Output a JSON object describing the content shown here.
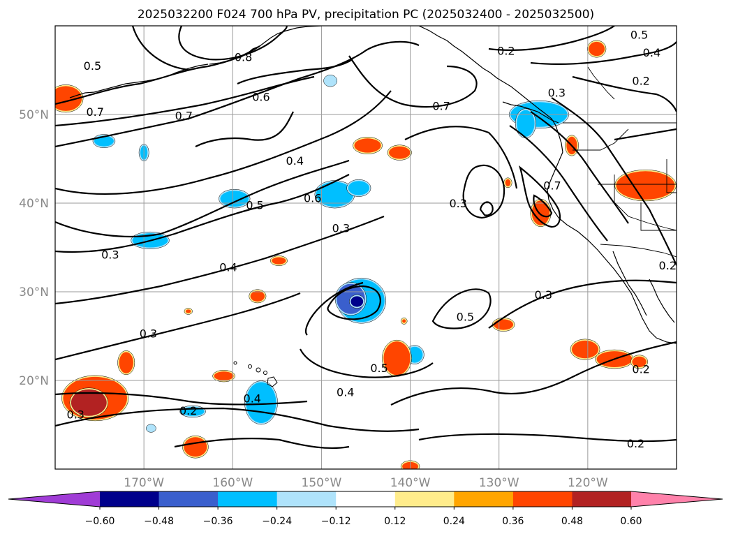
{
  "title": "2025032200 F024 700 hPa PV, precipitation PC (2025032400 - 2025032500)",
  "chart_data": {
    "type": "contour_map",
    "lon_range": [
      -180,
      -110
    ],
    "lat_range": [
      10,
      60
    ],
    "lat_ticks": [
      {
        "value": 50,
        "label": "50°N"
      },
      {
        "value": 40,
        "label": "40°N"
      },
      {
        "value": 30,
        "label": "30°N"
      },
      {
        "value": 20,
        "label": "20°N"
      }
    ],
    "lon_ticks": [
      {
        "value": -170,
        "label": "170°W"
      },
      {
        "value": -160,
        "label": "160°W"
      },
      {
        "value": -150,
        "label": "150°W"
      },
      {
        "value": -140,
        "label": "140°W"
      },
      {
        "value": -130,
        "label": "130°W"
      },
      {
        "value": -120,
        "label": "120°W"
      }
    ],
    "grid": true,
    "contour_field": "700 hPa PV",
    "contour_color": "#000000",
    "contour_labels": [
      {
        "text": "0.5",
        "lon": -175.8,
        "lat": 55.5
      },
      {
        "text": "0.7",
        "lon": -175.5,
        "lat": 50.3
      },
      {
        "text": "0.7",
        "lon": -165.5,
        "lat": 49.9
      },
      {
        "text": "0.6",
        "lon": -156.8,
        "lat": 52.0
      },
      {
        "text": "0.8",
        "lon": -158.8,
        "lat": 56.5
      },
      {
        "text": "0.4",
        "lon": -153.0,
        "lat": 44.8
      },
      {
        "text": "0.5",
        "lon": -157.5,
        "lat": 39.8
      },
      {
        "text": "0.6",
        "lon": -151.0,
        "lat": 40.6
      },
      {
        "text": "0.3",
        "lon": -147.8,
        "lat": 37.2
      },
      {
        "text": "0.3",
        "lon": -173.8,
        "lat": 34.2
      },
      {
        "text": "0.4",
        "lon": -160.5,
        "lat": 32.8
      },
      {
        "text": "0.3",
        "lon": -169.5,
        "lat": 25.3
      },
      {
        "text": "0.3",
        "lon": -177.7,
        "lat": 16.2
      },
      {
        "text": "0.2",
        "lon": -165.0,
        "lat": 16.6
      },
      {
        "text": "0.4",
        "lon": -157.8,
        "lat": 18.0
      },
      {
        "text": "0.4",
        "lon": -147.3,
        "lat": 18.7
      },
      {
        "text": "0.5",
        "lon": -143.5,
        "lat": 21.4
      },
      {
        "text": "0.5",
        "lon": -133.8,
        "lat": 27.2
      },
      {
        "text": "0.3",
        "lon": -125.0,
        "lat": 29.7
      },
      {
        "text": "0.7",
        "lon": -136.5,
        "lat": 51.0
      },
      {
        "text": "0.3",
        "lon": -134.6,
        "lat": 40.0
      },
      {
        "text": "0.7",
        "lon": -124.0,
        "lat": 42.0
      },
      {
        "text": "0.2",
        "lon": -129.2,
        "lat": 57.2
      },
      {
        "text": "0.3",
        "lon": -123.5,
        "lat": 52.5
      },
      {
        "text": "0.5",
        "lon": -114.2,
        "lat": 59.0
      },
      {
        "text": "0.4",
        "lon": -112.8,
        "lat": 57.0
      },
      {
        "text": "0.2",
        "lon": -114.0,
        "lat": 53.8
      },
      {
        "text": "0.2",
        "lon": -114.0,
        "lat": 21.3
      },
      {
        "text": "0.2",
        "lon": -114.6,
        "lat": 12.9
      },
      {
        "text": "0.2",
        "lon": -111.0,
        "lat": 33.0
      }
    ],
    "colorbar": {
      "ticks": [
        "−0.60",
        "−0.48",
        "−0.36",
        "−0.24",
        "−0.12",
        "0.12",
        "0.24",
        "0.36",
        "0.48",
        "0.60"
      ],
      "colors": [
        "#a03cd6",
        "#00008b",
        "#3a5fcd",
        "#00bfff",
        "#afe3fb",
        "#ffffff",
        "#ffec8b",
        "#ffa500",
        "#ff4500",
        "#b22222",
        "#ff82ab"
      ]
    },
    "precip_blobs": [
      {
        "lon": -178.8,
        "lat": 51.8,
        "rx": 1.8,
        "ry": 1.4,
        "level": 0.36
      },
      {
        "lon": -174.5,
        "lat": 47.0,
        "rx": 1.1,
        "ry": 0.6,
        "level": -0.36
      },
      {
        "lon": -170.0,
        "lat": 45.7,
        "rx": 0.4,
        "ry": 0.8,
        "level": -0.36
      },
      {
        "lon": -169.3,
        "lat": 35.8,
        "rx": 2.0,
        "ry": 0.8,
        "level": -0.36
      },
      {
        "lon": -159.8,
        "lat": 40.5,
        "rx": 1.6,
        "ry": 0.9,
        "level": -0.36
      },
      {
        "lon": -148.5,
        "lat": 41.0,
        "rx": 2.1,
        "ry": 1.4,
        "level": -0.36
      },
      {
        "lon": -145.8,
        "lat": 41.7,
        "rx": 1.2,
        "ry": 0.8,
        "level": -0.36
      },
      {
        "lon": -149.0,
        "lat": 53.8,
        "rx": 0.6,
        "ry": 0.5,
        "level": -0.24
      },
      {
        "lon": -145.5,
        "lat": 29.0,
        "rx": 2.6,
        "ry": 2.4,
        "level": -0.36
      },
      {
        "lon": -146.7,
        "lat": 29.2,
        "rx": 1.6,
        "ry": 1.7,
        "level": -0.48
      },
      {
        "lon": -146.0,
        "lat": 28.9,
        "rx": 0.7,
        "ry": 0.6,
        "level": -0.6
      },
      {
        "lon": -139.5,
        "lat": 22.9,
        "rx": 0.9,
        "ry": 0.9,
        "level": -0.36
      },
      {
        "lon": -144.8,
        "lat": 46.5,
        "rx": 1.5,
        "ry": 0.8,
        "level": 0.36
      },
      {
        "lon": -141.2,
        "lat": 45.7,
        "rx": 1.2,
        "ry": 0.7,
        "level": 0.36
      },
      {
        "lon": -156.8,
        "lat": 17.5,
        "rx": 1.7,
        "ry": 2.3,
        "level": -0.36
      },
      {
        "lon": -164.5,
        "lat": 16.5,
        "rx": 1.3,
        "ry": 0.5,
        "level": -0.36
      },
      {
        "lon": -169.2,
        "lat": 14.6,
        "rx": 0.4,
        "ry": 0.3,
        "level": -0.24
      },
      {
        "lon": -175.5,
        "lat": 18.0,
        "rx": 3.6,
        "ry": 2.4,
        "level": 0.36
      },
      {
        "lon": -176.2,
        "lat": 17.5,
        "rx": 2.0,
        "ry": 1.5,
        "level": 0.48
      },
      {
        "lon": -172.0,
        "lat": 22.0,
        "rx": 0.8,
        "ry": 1.2,
        "level": 0.36
      },
      {
        "lon": -164.2,
        "lat": 12.5,
        "rx": 1.3,
        "ry": 1.1,
        "level": 0.36
      },
      {
        "lon": -161.0,
        "lat": 20.5,
        "rx": 1.1,
        "ry": 0.5,
        "level": 0.36
      },
      {
        "lon": -157.2,
        "lat": 29.5,
        "rx": 0.8,
        "ry": 0.6,
        "level": 0.36
      },
      {
        "lon": -154.8,
        "lat": 33.5,
        "rx": 0.8,
        "ry": 0.4,
        "level": 0.36
      },
      {
        "lon": -141.5,
        "lat": 22.5,
        "rx": 1.5,
        "ry": 1.9,
        "level": 0.36
      },
      {
        "lon": -129.5,
        "lat": 26.3,
        "rx": 1.1,
        "ry": 0.6,
        "level": 0.36
      },
      {
        "lon": -120.3,
        "lat": 23.5,
        "rx": 1.5,
        "ry": 1.0,
        "level": 0.36
      },
      {
        "lon": -117.0,
        "lat": 22.4,
        "rx": 2.0,
        "ry": 0.9,
        "level": 0.36
      },
      {
        "lon": -114.2,
        "lat": 22.1,
        "rx": 0.8,
        "ry": 0.6,
        "level": 0.36
      },
      {
        "lon": -125.3,
        "lat": 38.9,
        "rx": 1.0,
        "ry": 1.4,
        "level": 0.36
      },
      {
        "lon": -129.0,
        "lat": 42.3,
        "rx": 0.3,
        "ry": 0.4,
        "level": 0.36
      },
      {
        "lon": -121.8,
        "lat": 46.5,
        "rx": 0.6,
        "ry": 1.0,
        "level": 0.36
      },
      {
        "lon": -113.5,
        "lat": 42.0,
        "rx": 3.3,
        "ry": 1.6,
        "level": 0.36
      },
      {
        "lon": -119.0,
        "lat": 57.4,
        "rx": 0.9,
        "ry": 0.8,
        "level": 0.36
      },
      {
        "lon": -140.0,
        "lat": 10.3,
        "rx": 0.9,
        "ry": 0.5,
        "level": 0.36
      },
      {
        "lon": -125.5,
        "lat": 50.0,
        "rx": 3.2,
        "ry": 1.4,
        "level": -0.36
      },
      {
        "lon": -127.0,
        "lat": 49.0,
        "rx": 1.0,
        "ry": 1.5,
        "level": -0.36
      },
      {
        "lon": -165.0,
        "lat": 27.8,
        "rx": 0.3,
        "ry": 0.2,
        "level": 0.36
      },
      {
        "lon": -140.7,
        "lat": 26.7,
        "rx": 0.2,
        "ry": 0.2,
        "level": 0.36
      }
    ]
  }
}
